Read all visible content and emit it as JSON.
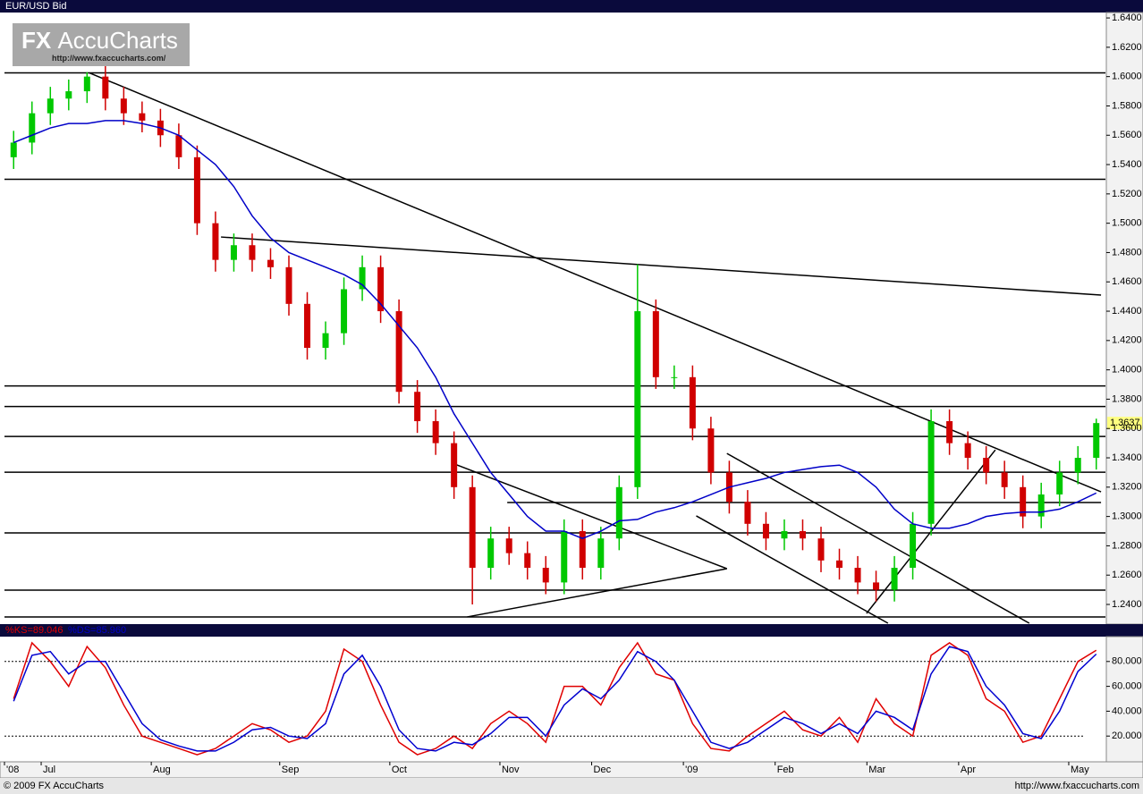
{
  "chart_data": [
    {
      "type": "candlestick",
      "title": "EUR/USD Bid",
      "categories": [
        "'08",
        null,
        "Jul",
        null,
        null,
        null,
        null,
        null,
        "Aug",
        null,
        null,
        null,
        null,
        null,
        null,
        "Sep",
        null,
        null,
        null,
        null,
        null,
        "Oct",
        null,
        null,
        null,
        null,
        null,
        "Nov",
        null,
        null,
        null,
        null,
        "Dec",
        null,
        null,
        null,
        null,
        "'09",
        null,
        null,
        null,
        null,
        "Feb",
        null,
        null,
        null,
        null,
        "Mar",
        null,
        null,
        null,
        null,
        "Apr",
        null,
        null,
        null,
        null,
        null,
        "May",
        null
      ],
      "open": [
        1.545,
        1.555,
        1.575,
        1.585,
        1.59,
        1.6,
        1.585,
        1.575,
        1.57,
        1.56,
        1.545,
        1.5,
        1.475,
        1.485,
        1.475,
        1.47,
        1.445,
        1.415,
        1.425,
        1.455,
        1.47,
        1.44,
        1.385,
        1.365,
        1.35,
        1.32,
        1.265,
        1.285,
        1.275,
        1.265,
        1.255,
        1.29,
        1.265,
        1.285,
        1.32,
        1.44,
        1.395,
        1.395,
        1.36,
        1.33,
        1.31,
        1.295,
        1.285,
        1.29,
        1.285,
        1.27,
        1.265,
        1.255,
        1.25,
        1.265,
        1.295,
        1.365,
        1.35,
        1.34,
        1.33,
        1.32,
        1.3,
        1.315,
        1.33,
        1.34
      ],
      "high": [
        1.563,
        1.583,
        1.593,
        1.598,
        1.603,
        1.608,
        1.593,
        1.583,
        1.578,
        1.568,
        1.553,
        1.508,
        1.493,
        1.493,
        1.483,
        1.478,
        1.453,
        1.433,
        1.463,
        1.478,
        1.478,
        1.448,
        1.393,
        1.373,
        1.358,
        1.328,
        1.293,
        1.293,
        1.283,
        1.273,
        1.298,
        1.298,
        1.293,
        1.328,
        1.472,
        1.448,
        1.403,
        1.403,
        1.368,
        1.338,
        1.318,
        1.303,
        1.298,
        1.298,
        1.293,
        1.278,
        1.273,
        1.263,
        1.273,
        1.303,
        1.373,
        1.373,
        1.358,
        1.348,
        1.338,
        1.328,
        1.323,
        1.338,
        1.348,
        1.3667
      ],
      "low": [
        1.537,
        1.547,
        1.567,
        1.577,
        1.582,
        1.577,
        1.567,
        1.562,
        1.552,
        1.537,
        1.492,
        1.467,
        1.467,
        1.467,
        1.462,
        1.437,
        1.407,
        1.407,
        1.417,
        1.447,
        1.432,
        1.377,
        1.357,
        1.342,
        1.312,
        1.24,
        1.257,
        1.267,
        1.257,
        1.247,
        1.247,
        1.257,
        1.257,
        1.277,
        1.312,
        1.387,
        1.387,
        1.352,
        1.322,
        1.302,
        1.287,
        1.277,
        1.277,
        1.277,
        1.262,
        1.257,
        1.247,
        1.242,
        1.242,
        1.257,
        1.287,
        1.342,
        1.332,
        1.322,
        1.312,
        1.292,
        1.292,
        1.307,
        1.322,
        1.332
      ],
      "close": [
        1.555,
        1.575,
        1.585,
        1.59,
        1.6,
        1.585,
        1.575,
        1.57,
        1.56,
        1.545,
        1.5,
        1.475,
        1.485,
        1.475,
        1.47,
        1.445,
        1.415,
        1.425,
        1.455,
        1.47,
        1.44,
        1.385,
        1.365,
        1.35,
        1.32,
        1.265,
        1.285,
        1.275,
        1.265,
        1.255,
        1.29,
        1.265,
        1.285,
        1.32,
        1.44,
        1.395,
        1.395,
        1.36,
        1.33,
        1.31,
        1.295,
        1.285,
        1.29,
        1.285,
        1.27,
        1.265,
        1.255,
        1.25,
        1.265,
        1.295,
        1.365,
        1.35,
        1.34,
        1.33,
        1.32,
        1.3,
        1.315,
        1.33,
        1.34,
        1.3637
      ],
      "up_color": "#00c800",
      "down_color": "#d00000",
      "series": [
        {
          "color": "#0000c8",
          "values": [
            1.555,
            1.56,
            1.565,
            1.568,
            1.568,
            1.57,
            1.57,
            1.568,
            1.565,
            1.56,
            1.55,
            1.54,
            1.525,
            1.505,
            1.49,
            1.48,
            1.475,
            1.47,
            1.465,
            1.458,
            1.445,
            1.43,
            1.415,
            1.395,
            1.37,
            1.35,
            1.33,
            1.315,
            1.3,
            1.29,
            1.29,
            1.285,
            1.29,
            1.297,
            1.298,
            1.303,
            1.306,
            1.31,
            1.315,
            1.32,
            1.323,
            1.326,
            1.33,
            1.332,
            1.334,
            1.335,
            1.33,
            1.32,
            1.305,
            1.295,
            1.292,
            1.292,
            1.295,
            1.3,
            1.302,
            1.303,
            1.303,
            1.305,
            1.31,
            1.316
          ]
        }
      ],
      "levels": [
        1.6025,
        1.53,
        1.389,
        1.375,
        1.3546,
        1.3302,
        1.2888,
        1.2498,
        1.2315
      ],
      "trendlines": [
        {
          "x": [
            4.13,
            59.26
          ],
          "y": [
            1.6025,
            1.3168
          ]
        },
        {
          "x": [
            11.3,
            59.26
          ],
          "y": [
            1.4906,
            1.451
          ]
        },
        {
          "x": [
            24.04,
            38.87
          ],
          "y": [
            1.3357,
            1.2644
          ]
        },
        {
          "x": [
            24.72,
            38.87
          ],
          "y": [
            1.2315,
            1.2644
          ]
        },
        {
          "x": [
            38.87,
            55.35
          ],
          "y": [
            1.343,
            1.2272
          ]
        },
        {
          "x": [
            37.2,
            47.65
          ],
          "y": [
            1.3004,
            1.2272
          ]
        },
        {
          "x": [
            46.48,
            53.5
          ],
          "y": [
            1.2339,
            1.3454
          ]
        },
        {
          "x": [
            26.9,
            59.26
          ],
          "y": [
            1.3095,
            1.3095
          ]
        }
      ],
      "ylim": [
        1.2272,
        1.6437
      ],
      "yticks": [
        {
          "value": 1.24,
          "label": "1.2400"
        },
        {
          "value": 1.26,
          "label": "1.2600"
        },
        {
          "value": 1.28,
          "label": "1.2800"
        },
        {
          "value": 1.3,
          "label": "1.3000"
        },
        {
          "value": 1.32,
          "label": "1.3200"
        },
        {
          "value": 1.34,
          "label": "1.3400"
        },
        {
          "value": 1.36,
          "label": "1.3600"
        },
        {
          "value": 1.38,
          "label": "1.3800"
        },
        {
          "value": 1.4,
          "label": "1.4000"
        },
        {
          "value": 1.42,
          "label": "1.4200"
        },
        {
          "value": 1.44,
          "label": "1.4400"
        },
        {
          "value": 1.46,
          "label": "1.4600"
        },
        {
          "value": 1.48,
          "label": "1.4800"
        },
        {
          "value": 1.5,
          "label": "1.5000"
        },
        {
          "value": 1.52,
          "label": "1.5200"
        },
        {
          "value": 1.54,
          "label": "1.5400"
        },
        {
          "value": 1.56,
          "label": "1.5600"
        },
        {
          "value": 1.58,
          "label": "1.5800"
        },
        {
          "value": 1.6,
          "label": "1.6000"
        },
        {
          "value": 1.62,
          "label": "1.6200"
        },
        {
          "value": 1.64,
          "label": "1.6400"
        }
      ]
    },
    {
      "type": "line",
      "series": [
        {
          "name": "%KS=89.046",
          "color": "#e00000",
          "values": [
            50,
            95,
            80,
            60,
            92,
            75,
            45,
            20,
            15,
            10,
            5,
            10,
            20,
            30,
            25,
            15,
            20,
            40,
            90,
            80,
            45,
            15,
            5,
            10,
            20,
            10,
            30,
            40,
            30,
            15,
            60,
            60,
            45,
            75,
            95,
            70,
            65,
            30,
            10,
            8,
            20,
            30,
            40,
            25,
            20,
            35,
            15,
            50,
            30,
            20,
            85,
            95,
            85,
            50,
            40,
            15,
            20,
            50,
            80,
            89.046
          ]
        },
        {
          "name": "%DS=85.960",
          "color": "#0000d0",
          "values": [
            48,
            85,
            88,
            70,
            80,
            80,
            55,
            30,
            17,
            12,
            8,
            8,
            15,
            25,
            27,
            20,
            18,
            30,
            70,
            85,
            60,
            25,
            10,
            8,
            15,
            13,
            22,
            35,
            35,
            20,
            45,
            58,
            50,
            65,
            88,
            80,
            65,
            40,
            15,
            10,
            15,
            25,
            35,
            30,
            22,
            30,
            22,
            40,
            35,
            25,
            70,
            92,
            88,
            60,
            45,
            22,
            18,
            40,
            72,
            85.96
          ]
        }
      ],
      "reference_lines": [
        80,
        20
      ],
      "ylim": [
        0,
        100
      ],
      "yticks": [
        {
          "value": 20,
          "label": "20.000"
        },
        {
          "value": 40,
          "label": "40.000"
        },
        {
          "value": 60,
          "label": "60.000"
        },
        {
          "value": 80,
          "label": "80.000"
        }
      ]
    }
  ],
  "logo": {
    "brand_fx": "FX",
    "brand_name": "AccuCharts",
    "url": "http://www.fxaccucharts.com/"
  },
  "footer": {
    "copyright": "© 2009 FX AccuCharts",
    "url": "http://www.fxaccucharts.com"
  }
}
